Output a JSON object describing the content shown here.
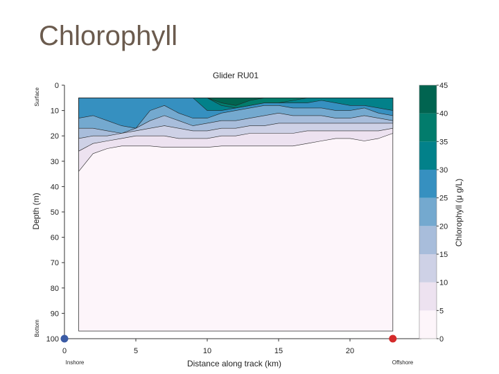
{
  "slide": {
    "title": "Chlorophyll"
  },
  "chart_data": {
    "type": "heatmap",
    "title": "Glider RU01",
    "xlabel": "Distance along track (km)",
    "ylabel": "Depth (m)",
    "xlim": [
      0,
      25
    ],
    "ylim": [
      0,
      100
    ],
    "y_inverted": true,
    "x_ticks": [
      0,
      5,
      10,
      15,
      20
    ],
    "y_ticks": [
      0,
      10,
      20,
      30,
      40,
      50,
      60,
      70,
      80,
      90,
      100
    ],
    "y_end_labels": {
      "top": "Surface",
      "bottom": "Bottom"
    },
    "x_end_labels": {
      "left": "Inshore",
      "right": "Offshore"
    },
    "endpoints": [
      {
        "label": "Inshore",
        "x": 0,
        "depth": 100,
        "color": "#3b5ba5"
      },
      {
        "label": "Offshore",
        "x": 23,
        "depth": 100,
        "color": "#d42a2a"
      }
    ],
    "colorbar": {
      "label": "Chlorophyll (μ g/L)",
      "ticks": [
        0,
        5,
        10,
        15,
        20,
        25,
        30,
        35,
        40,
        45
      ],
      "colors": [
        "#fdf5fa",
        "#ede2f0",
        "#ced1e6",
        "#a8bddb",
        "#74a9cf",
        "#3690c0",
        "#02818a",
        "#027c6c",
        "#016450"
      ]
    },
    "x_profile": [
      1,
      2,
      3,
      4,
      5,
      6,
      7,
      8,
      9,
      10,
      11,
      12,
      13,
      14,
      15,
      16,
      17,
      18,
      19,
      20,
      21,
      22,
      23
    ],
    "level_depths": [
      {
        "level": 5,
        "depths": [
          34,
          27,
          25,
          24,
          24,
          24,
          24.5,
          24.5,
          24.5,
          24.5,
          24,
          24,
          24,
          24,
          24,
          24,
          23,
          22,
          21,
          21,
          22,
          21,
          19
        ]
      },
      {
        "level": 10,
        "depths": [
          26,
          23,
          22,
          21,
          20,
          20,
          20,
          21,
          21,
          21,
          20,
          20,
          19,
          19,
          19,
          19,
          18,
          18,
          18,
          18,
          18,
          18,
          17
        ]
      },
      {
        "level": 15,
        "depths": [
          21,
          20,
          20,
          19,
          18,
          17,
          16,
          17,
          18,
          18,
          17,
          17,
          16,
          16,
          15,
          15,
          15,
          15,
          15,
          15,
          15,
          15,
          15
        ]
      },
      {
        "level": 20,
        "depths": [
          17,
          17,
          18,
          19,
          17,
          14,
          12,
          14,
          16,
          15,
          14,
          14,
          13,
          12,
          11,
          12,
          12,
          12,
          13,
          13,
          12,
          13,
          14
        ]
      },
      {
        "level": 25,
        "depths": [
          13,
          12,
          14,
          16,
          17,
          10,
          8,
          11,
          13,
          13,
          11,
          10,
          9,
          8,
          8,
          9,
          9,
          9,
          10,
          10,
          9,
          11,
          12
        ]
      },
      {
        "level": 30,
        "depths": [
          5,
          5,
          5,
          5,
          5,
          5,
          5,
          5,
          5,
          10,
          10,
          9,
          8,
          7,
          7,
          7,
          7,
          6,
          7,
          8,
          8,
          9,
          10
        ]
      },
      {
        "level": 35,
        "depths": [
          5,
          5,
          5,
          5,
          5,
          5,
          5,
          5,
          5,
          5,
          8,
          9,
          8,
          7,
          7,
          6,
          5,
          5,
          5,
          5,
          5,
          5,
          5
        ]
      },
      {
        "level": 40,
        "depths": [
          5,
          5,
          5,
          5,
          5,
          5,
          5,
          5,
          5,
          5,
          7,
          8,
          6,
          5,
          5,
          5,
          5,
          5,
          5,
          5,
          5,
          5,
          5
        ]
      }
    ]
  }
}
